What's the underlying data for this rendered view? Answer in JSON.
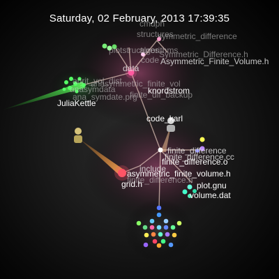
{
  "timestamp": "Saturday, 02 February, 2013 17:39:35",
  "users": [
    {
      "name": "JuliaKettle",
      "color": "#44ff44"
    },
    {
      "name": "code_karl",
      "color": "#ff8833"
    },
    {
      "name": "knordstrom",
      "color": "#ffd0a0"
    }
  ],
  "labels": {
    "cmdph": "cmdph",
    "structures": "structures",
    "asymmetric_difference": "symmetric_difference",
    "asym_diff_h": "Symmetric_Difference.h",
    "algorithms": "algorithms",
    "plot_structures": "plotstructures",
    "asym_fv_h_top": "Asymmetric_Finite_Volume.h",
    "code": "code",
    "data": "data",
    "ghost_1": "anrit_vol_dist",
    "ghost_2": "anasymdata",
    "ghost_3": "ana_symdate.prg",
    "ghost_4": "anasymmetric_finite_vol",
    "backup": "finite_dif_backup",
    "finite_difference": "finite_difference",
    "finite_difference_cc": "finite_difference.cc",
    "finite_difference_o": "finite_difference.o",
    "include": "include",
    "asym_fv_h": "asymmetric_finite_volume.h",
    "finite_difference_h": "finite_difference.h",
    "grid_h": "grid.h",
    "plot_gnu": "plot.gnu",
    "volume_dat": "volume.dat"
  },
  "colors": {
    "background": "#000000",
    "branch": "#f2d6c8",
    "node_pink": "#ff5aa0",
    "green_beam": "#33ff33",
    "orange_beam": "#ff9933"
  }
}
